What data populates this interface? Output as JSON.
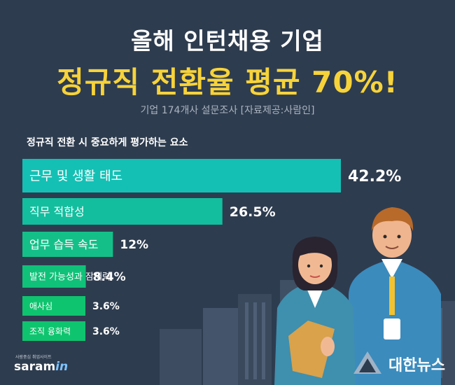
{
  "header": {
    "title_line1": "올해 인턴채용 기업",
    "title_line2": "정규직 전환율 평균 70%!",
    "subtitle": "기업 174개사 설문조사 [자료제공:사람인]"
  },
  "chart_data": {
    "type": "bar",
    "orientation": "horizontal",
    "title": "정규직 전환 시 중요하게 평가하는 요소",
    "categories": [
      "근무 및 생활 태도",
      "직무 적합성",
      "업무 습득 속도",
      "발전 가능성과 잠재력",
      "애사심",
      "조직 융화력"
    ],
    "values": [
      42.2,
      26.5,
      12,
      8.4,
      3.6,
      3.6
    ],
    "value_labels": [
      "42.2%",
      "26.5%",
      "12%",
      "8.4%",
      "3.6%",
      "3.6%"
    ],
    "unit": "%",
    "colors": [
      "#14c0b4",
      "#12be9e",
      "#14c088",
      "#10c279",
      "#0fc46e",
      "#0fc46e"
    ]
  },
  "branding": {
    "logo_tagline": "사람중심 취업사이트",
    "logo_text": "saram",
    "logo_suffix": "in",
    "news_name": "대한뉴스"
  },
  "colors": {
    "background": "#2e3c4f",
    "title_accent": "#f7d33a"
  }
}
